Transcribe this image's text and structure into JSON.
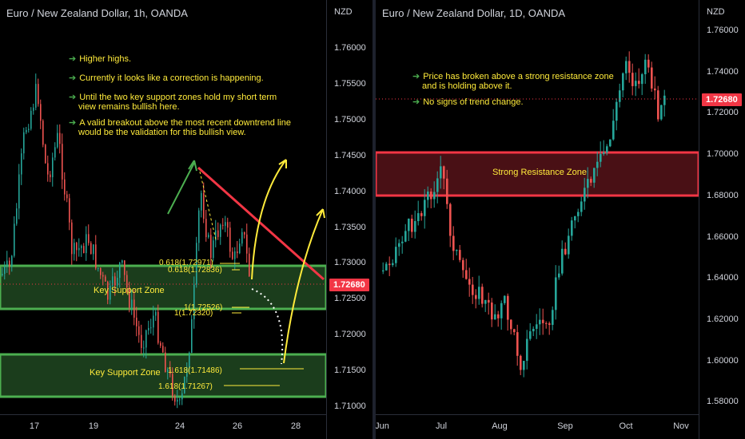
{
  "colors": {
    "up": "#26a69a",
    "down": "#ef5350",
    "zone_green": "#4caf50",
    "zone_red": "#f23645",
    "text_yellow": "#ffeb3b",
    "price_tag": "#f23645"
  },
  "left_chart": {
    "title": "Euro / New Zealand Dollar, 1h, OANDA",
    "unit": "NZD",
    "price_tag": "1.72680",
    "y_ticks": [
      "1.76000",
      "1.75500",
      "1.75000",
      "1.74500",
      "1.74000",
      "1.73500",
      "1.73000",
      "1.72500",
      "1.72000",
      "1.71500",
      "1.71000"
    ],
    "x_ticks": [
      "17",
      "19",
      "24",
      "26",
      "28"
    ],
    "notes": [
      "Higher highs.",
      "Currently it looks like a correction is happening.",
      "Until the two key support zones hold my short term view remains bullish here.",
      "A valid breakout above the most recent downtrend line would be the validation for this bullish view."
    ],
    "support_zone_1_label": "Key Support Zone",
    "support_zone_2_label": "Key Support Zone",
    "fib_labels": [
      "0.618(1.72971)",
      "0.618(1.72836)",
      "1(1.72526)",
      "1(1.72320)",
      "1.618(1.71486)",
      "1.618(1.71267)"
    ]
  },
  "right_chart": {
    "title": "Euro / New Zealand Dollar, 1D, OANDA",
    "unit": "NZD",
    "price_tag": "1.72680",
    "y_ticks": [
      "1.76000",
      "1.74000",
      "1.72000",
      "1.70000",
      "1.68000",
      "1.66000",
      "1.64000",
      "1.62000",
      "1.60000",
      "1.58000"
    ],
    "x_ticks": [
      "Jun",
      "Jul",
      "Aug",
      "Sep",
      "Oct",
      "Nov"
    ],
    "notes": [
      "Price has broken above a strong resistance zone and is holding above it.",
      "No signs of trend change."
    ],
    "resistance_zone_label": "Strong Resistance Zone"
  }
}
